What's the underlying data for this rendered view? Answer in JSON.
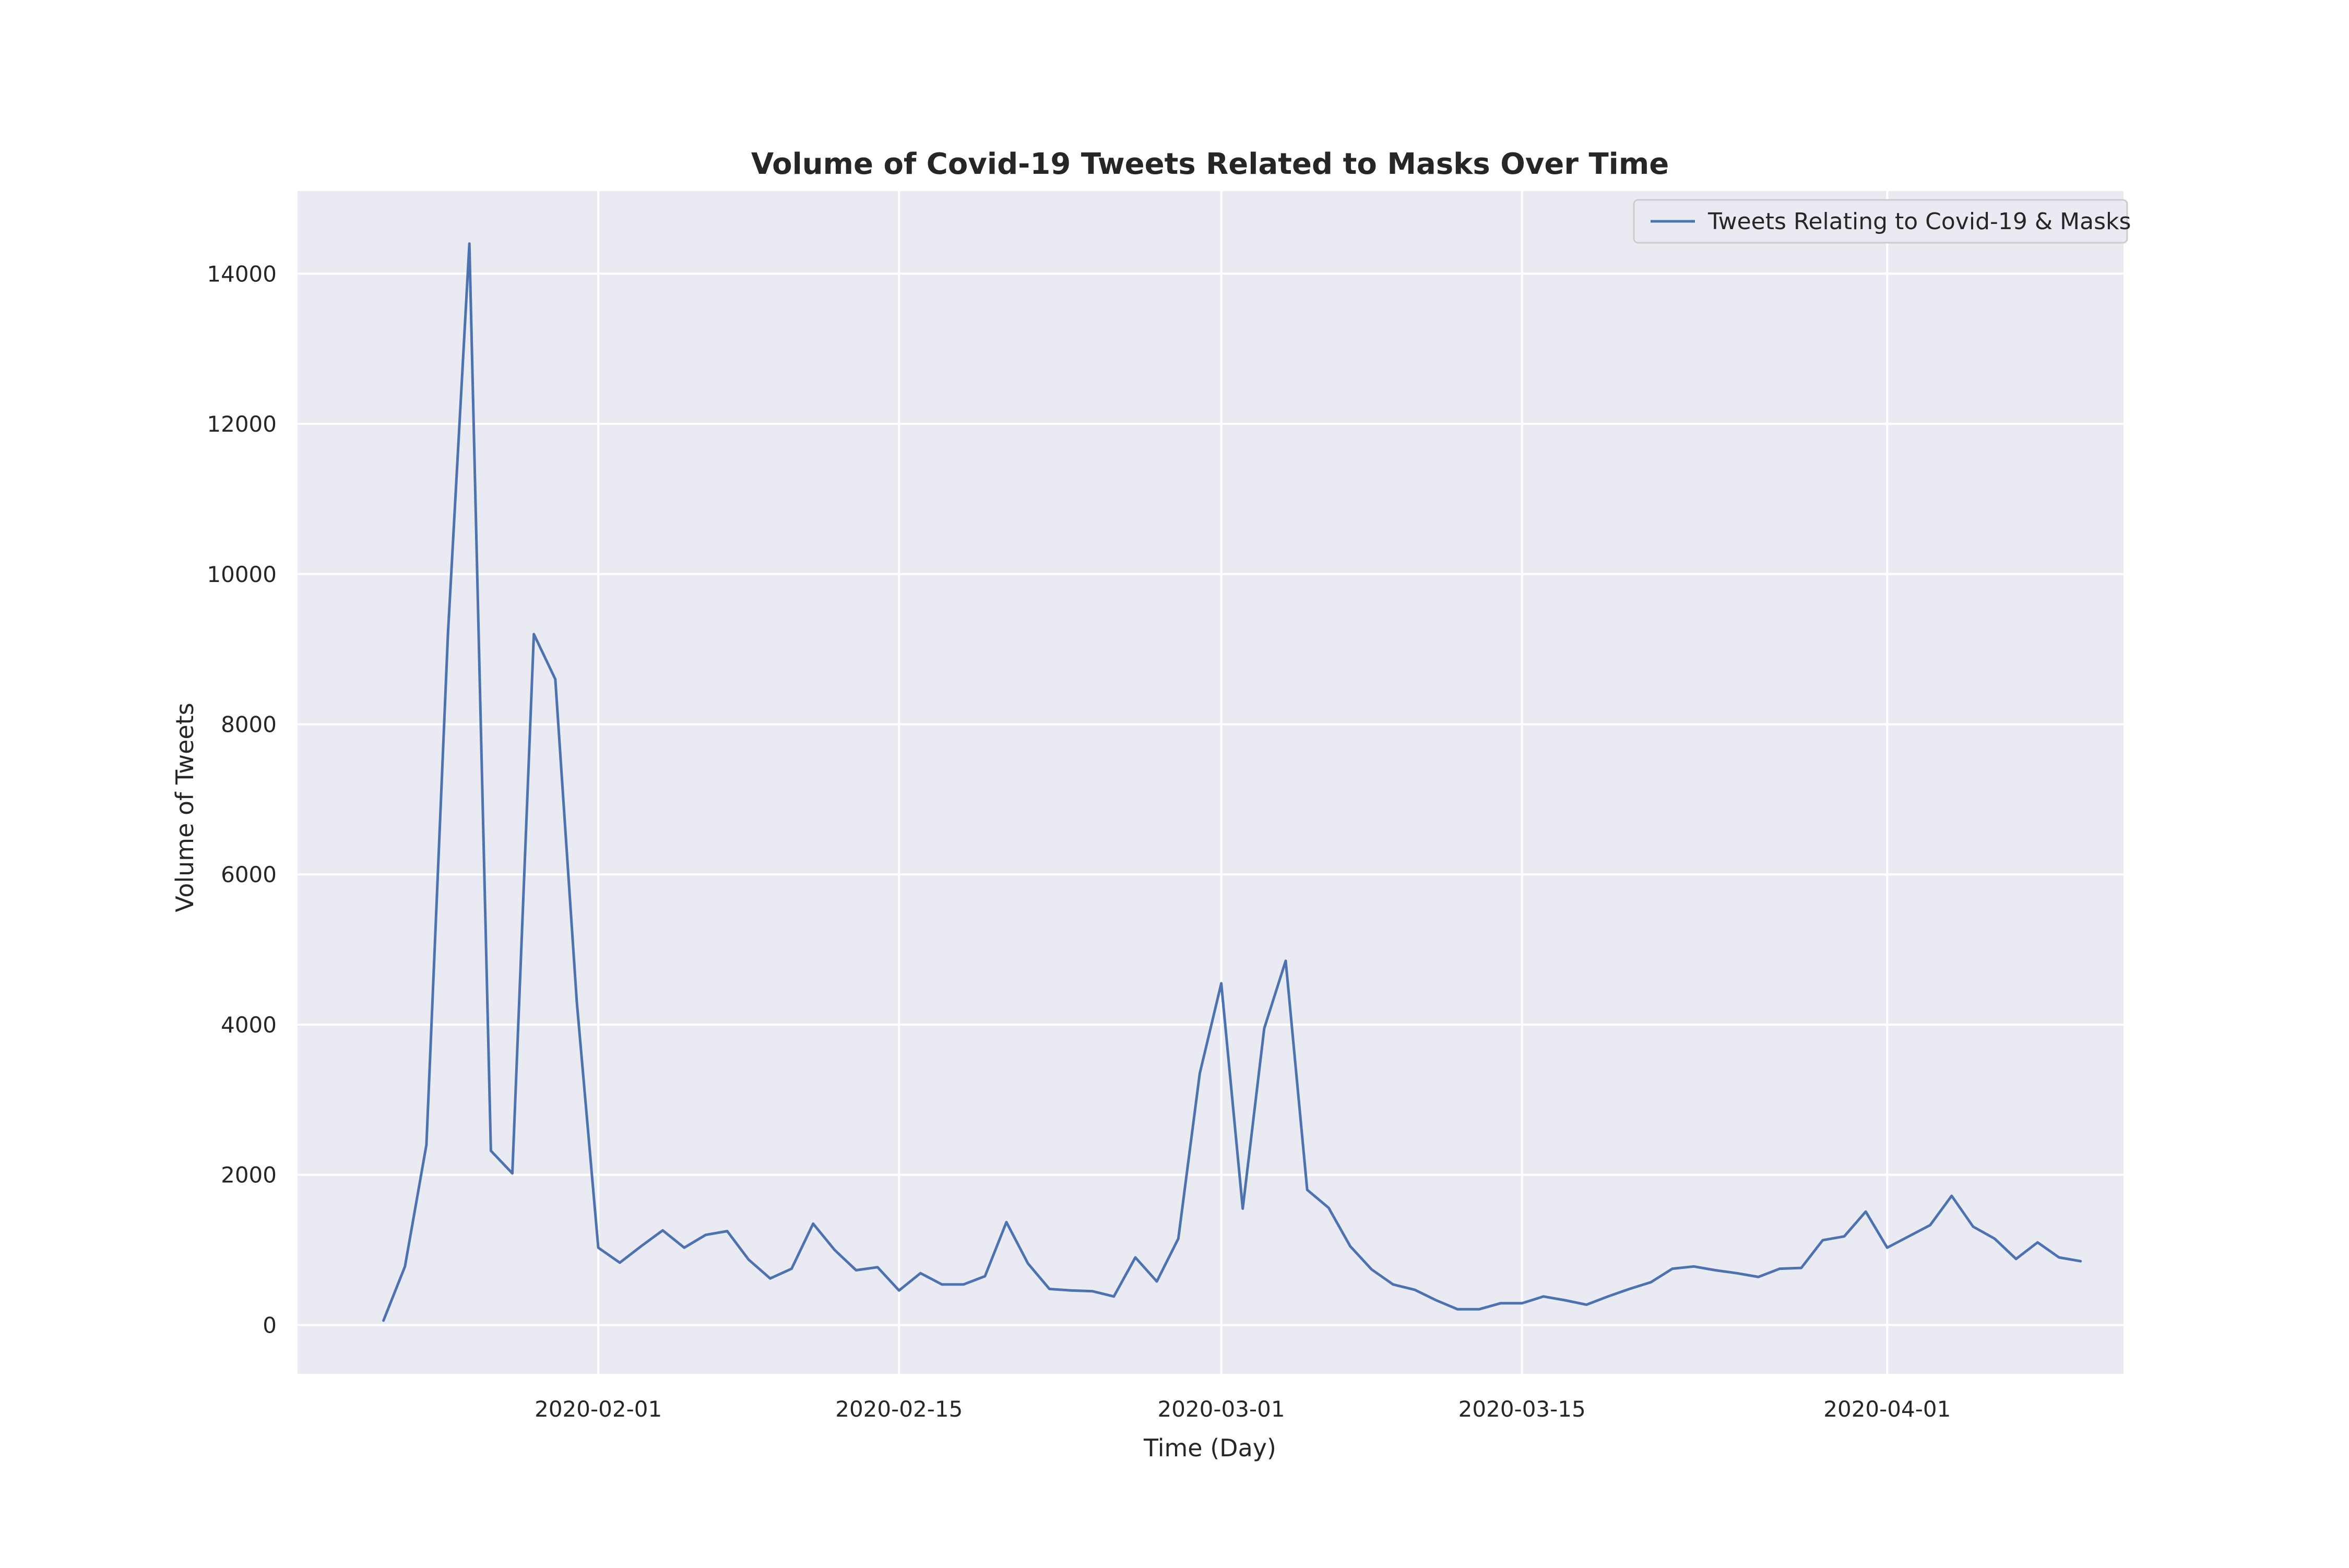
{
  "chart_data": {
    "type": "line",
    "title": "Volume of Covid-19 Tweets Related to Masks Over Time",
    "xlabel": "Time (Day)",
    "ylabel": "Volume of Tweets",
    "ylim": [
      -650,
      15100
    ],
    "xlim": [
      "2020-01-18",
      "2020-04-12"
    ],
    "x_ticks": [
      "2020-02-01",
      "2020-02-15",
      "2020-03-01",
      "2020-03-15",
      "2020-04-01"
    ],
    "y_ticks": [
      0,
      2000,
      4000,
      6000,
      8000,
      10000,
      12000,
      14000
    ],
    "grid": true,
    "legend": {
      "placement": "top-right"
    },
    "colors": {
      "background": "#eaeaf2",
      "grid": "#ffffff",
      "line": "#4c72b0"
    },
    "series": [
      {
        "name": "Tweets Relating to Covid-19 & Masks",
        "x": [
          "2020-01-22",
          "2020-01-23",
          "2020-01-24",
          "2020-01-25",
          "2020-01-26",
          "2020-01-27",
          "2020-01-28",
          "2020-01-29",
          "2020-01-30",
          "2020-01-31",
          "2020-02-01",
          "2020-02-02",
          "2020-02-03",
          "2020-02-04",
          "2020-02-05",
          "2020-02-06",
          "2020-02-07",
          "2020-02-08",
          "2020-02-09",
          "2020-02-10",
          "2020-02-11",
          "2020-02-12",
          "2020-02-13",
          "2020-02-14",
          "2020-02-15",
          "2020-02-16",
          "2020-02-17",
          "2020-02-18",
          "2020-02-19",
          "2020-02-20",
          "2020-02-21",
          "2020-02-22",
          "2020-02-23",
          "2020-02-24",
          "2020-02-25",
          "2020-02-26",
          "2020-02-27",
          "2020-02-28",
          "2020-02-29",
          "2020-03-01",
          "2020-03-02",
          "2020-03-03",
          "2020-03-04",
          "2020-03-05",
          "2020-03-06",
          "2020-03-07",
          "2020-03-08",
          "2020-03-09",
          "2020-03-10",
          "2020-03-11",
          "2020-03-12",
          "2020-03-13",
          "2020-03-14",
          "2020-03-15",
          "2020-03-16",
          "2020-03-17",
          "2020-03-18",
          "2020-03-19",
          "2020-03-20",
          "2020-03-21",
          "2020-03-22",
          "2020-03-23",
          "2020-03-24",
          "2020-03-25",
          "2020-03-26",
          "2020-03-27",
          "2020-03-28",
          "2020-03-29",
          "2020-03-30",
          "2020-03-31",
          "2020-04-01",
          "2020-04-02",
          "2020-04-03",
          "2020-04-04",
          "2020-04-05",
          "2020-04-06",
          "2020-04-07",
          "2020-04-08",
          "2020-04-09",
          "2020-04-10"
        ],
        "values": [
          60,
          780,
          2400,
          9200,
          14400,
          2320,
          2020,
          9200,
          8600,
          4300,
          1030,
          830,
          1050,
          1260,
          1030,
          1200,
          1250,
          870,
          620,
          750,
          1350,
          1000,
          730,
          770,
          460,
          690,
          540,
          540,
          650,
          1370,
          820,
          480,
          460,
          450,
          380,
          900,
          580,
          1150,
          3350,
          4550,
          1550,
          3950,
          4850,
          1800,
          1560,
          1050,
          740,
          540,
          470,
          330,
          210,
          210,
          290,
          290,
          380,
          330,
          270,
          380,
          480,
          570,
          750,
          780,
          730,
          690,
          640,
          750,
          760,
          1130,
          1180,
          1510,
          1030,
          1180,
          1330,
          1720,
          1310,
          1150,
          880,
          1100,
          900,
          850
        ]
      }
    ]
  }
}
